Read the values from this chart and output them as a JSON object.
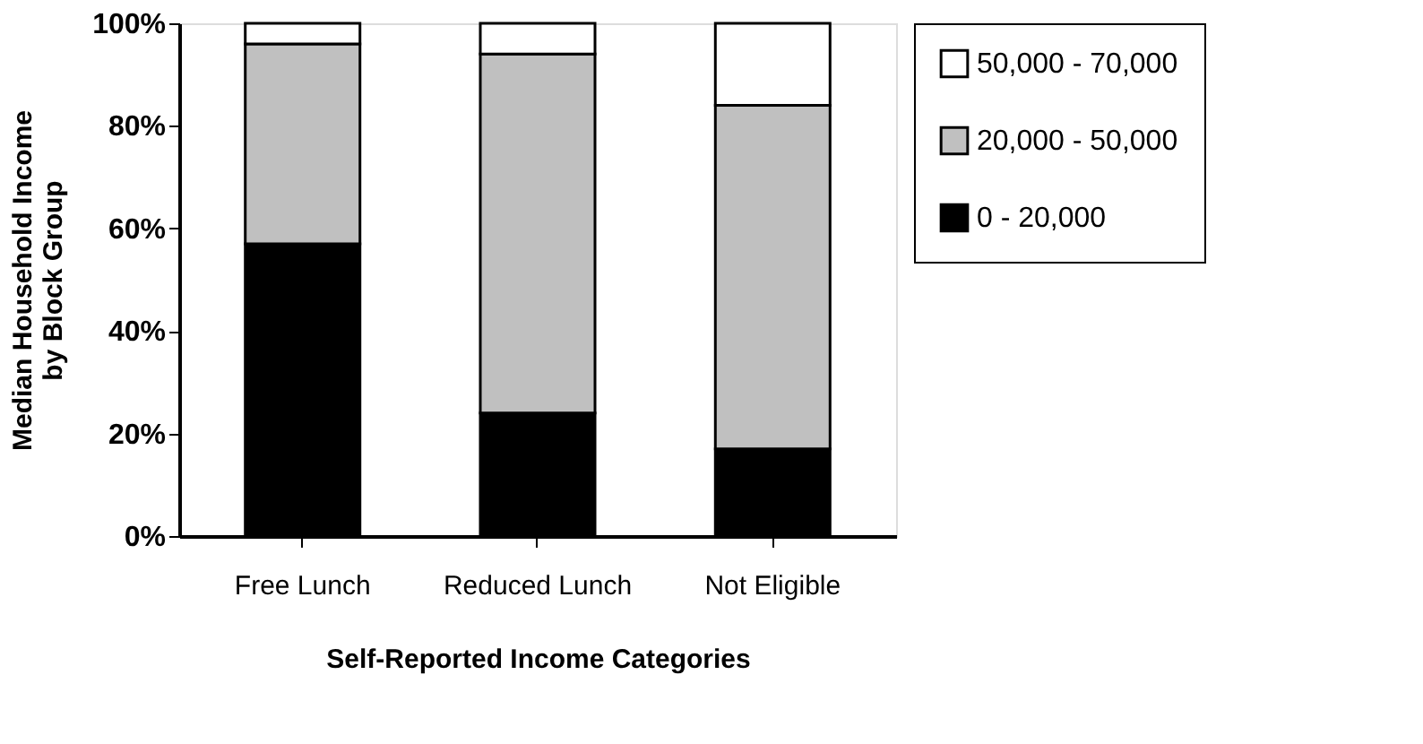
{
  "chart_data": {
    "type": "bar",
    "stacked": true,
    "xlabel": "Self-Reported Income Categories",
    "ylabel": "Median Household Income\nby Block Group",
    "categories": [
      "Free Lunch",
      "Reduced Lunch",
      "Not Eligible"
    ],
    "series": [
      {
        "name": "0 - 20,000",
        "color": "#000000",
        "values": [
          57,
          24,
          17
        ]
      },
      {
        "name": "20,000 - 50,000",
        "color": "#c0c0c0",
        "values": [
          39,
          70,
          67
        ]
      },
      {
        "name": "50,000 - 70,000",
        "color": "#ffffff",
        "values": [
          4,
          6,
          16
        ]
      }
    ],
    "ylim": [
      0,
      100
    ],
    "yticks": [
      {
        "value": 0,
        "label": "0%"
      },
      {
        "value": 20,
        "label": "20%"
      },
      {
        "value": 40,
        "label": "40%"
      },
      {
        "value": 60,
        "label": "60%"
      },
      {
        "value": 80,
        "label": "80%"
      },
      {
        "value": 100,
        "label": "100%"
      }
    ],
    "grid": false,
    "legend": "right"
  }
}
